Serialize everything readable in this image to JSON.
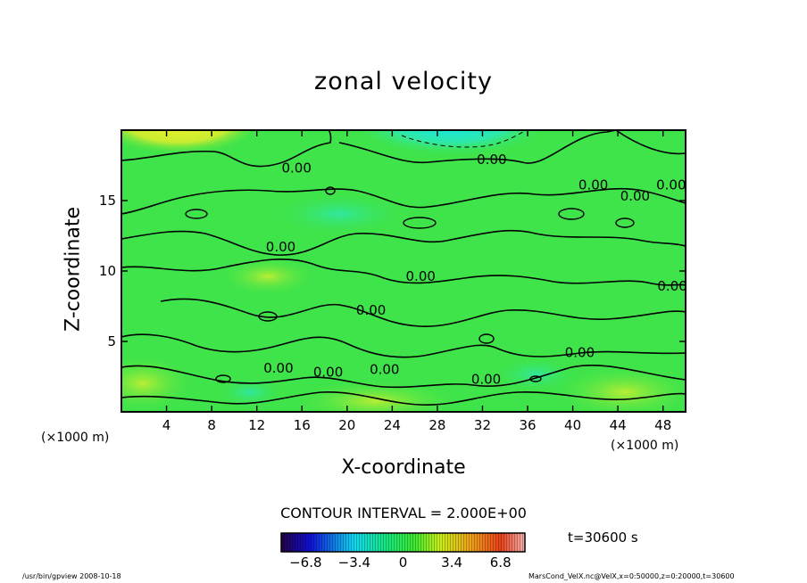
{
  "chart_data": {
    "type": "heatmap",
    "title": "zonal velocity",
    "xlabel": "X-coordinate",
    "ylabel": "Z-coordinate",
    "x_unit_label": "(×1000 m)",
    "x_ticks": [
      4,
      8,
      12,
      16,
      20,
      24,
      28,
      32,
      36,
      40,
      44,
      48
    ],
    "y_ticks": [
      5,
      10,
      15
    ],
    "xlim": [
      0,
      50
    ],
    "ylim": [
      0,
      20
    ],
    "contour_interval_text": "CONTOUR INTERVAL = 2.000E+00",
    "contour_labels": [
      "0.00",
      "0.00",
      "0.00",
      "0.00",
      "0.00",
      "0.00",
      "0.00",
      "0.00",
      "0.00",
      "0.00",
      "0.00",
      "0.00",
      "0.00",
      "0.00"
    ],
    "colorbar": {
      "range": [
        -8.5,
        8.5
      ],
      "tick_values": [
        -6.8,
        -3.4,
        0,
        3.4,
        6.8
      ],
      "tick_labels": [
        "−6.8",
        "−3.4",
        "0",
        "3.4",
        "6.8"
      ]
    },
    "time_label": "t=30600 s",
    "grid": false,
    "legend": "colorbar-bottom"
  },
  "footer": {
    "left": "/usr/bin/gpview  2008-10-18",
    "right": "MarsCond_VelX.nc@VelX,x=0:50000,z=0:20000,t=30600"
  },
  "colors": {
    "background": "#ffffff",
    "field_base": "#39e44b",
    "positive_high": "#e8f02a",
    "negative_low": "#1ee6e6",
    "contour_line": "#000000"
  }
}
